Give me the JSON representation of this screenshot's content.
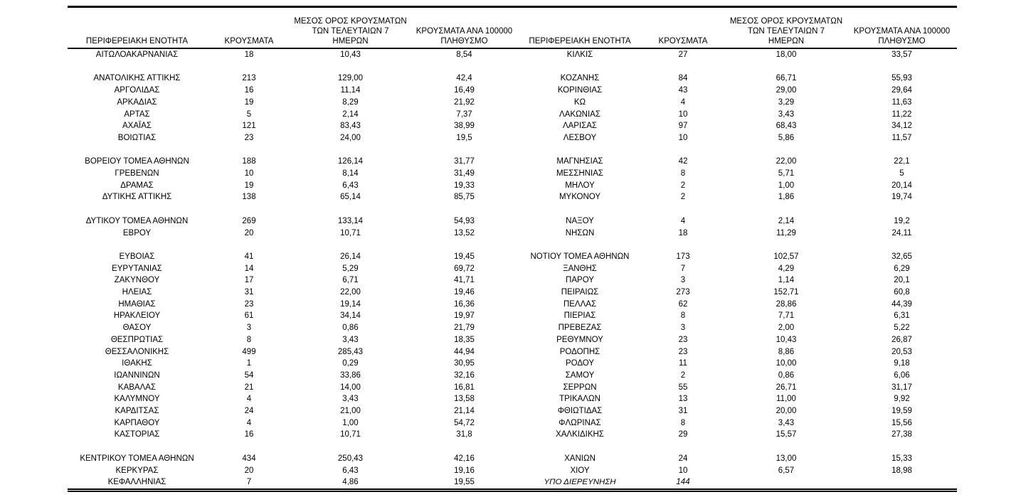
{
  "table": {
    "headers": {
      "region": "ΠΕΡΙΦΕΡΕΙΑΚΗ ΕΝΟΤΗΤΑ",
      "cases": "ΚΡΟΥΣΜΑΤΑ",
      "avg7_lines": [
        "ΜΕΣΟΣ ΟΡΟΣ ΚΡΟΥΣΜΑΤΩΝ",
        "ΤΩΝ ΤΕΛΕΥΤΑΙΩΝ 7",
        "ΗΜΕΡΩΝ"
      ],
      "per100k_lines": [
        "ΚΡΟΥΣΜΑΤΑ ΑΝΑ 100000",
        "ΠΛΗΘΥΣΜΟ"
      ]
    },
    "rows": [
      {
        "left": [
          "ΑΙΤΩΛΟΑΚΑΡΝΑΝΙΑΣ",
          "18",
          "10,43",
          "8,54"
        ],
        "right": [
          "ΚΙΛΚΙΣ",
          "27",
          "18,00",
          "33,57"
        ]
      },
      {
        "spacer": true
      },
      {
        "left": [
          "ΑΝΑΤΟΛΙΚΗΣ ΑΤΤΙΚΗΣ",
          "213",
          "129,00",
          "42,4"
        ],
        "right": [
          "ΚΟΖΑΝΗΣ",
          "84",
          "66,71",
          "55,93"
        ]
      },
      {
        "left": [
          "ΑΡΓΟΛΙΔΑΣ",
          "16",
          "11,14",
          "16,49"
        ],
        "right": [
          "ΚΟΡΙΝΘΙΑΣ",
          "43",
          "29,00",
          "29,64"
        ]
      },
      {
        "left": [
          "ΑΡΚΑΔΙΑΣ",
          "19",
          "8,29",
          "21,92"
        ],
        "right": [
          "ΚΩ",
          "4",
          "3,29",
          "11,63"
        ]
      },
      {
        "left": [
          "ΑΡΤΑΣ",
          "5",
          "2,14",
          "7,37"
        ],
        "right": [
          "ΛΑΚΩΝΙΑΣ",
          "10",
          "3,43",
          "11,22"
        ]
      },
      {
        "left": [
          "ΑΧΑΪΑΣ",
          "121",
          "83,43",
          "38,99"
        ],
        "right": [
          "ΛΑΡΙΣΑΣ",
          "97",
          "68,43",
          "34,12"
        ]
      },
      {
        "left": [
          "ΒΟΙΩΤΙΑΣ",
          "23",
          "24,00",
          "19,5"
        ],
        "right": [
          "ΛΕΣΒΟΥ",
          "10",
          "5,86",
          "11,57"
        ]
      },
      {
        "spacer": true
      },
      {
        "left": [
          "ΒΟΡΕΙΟΥ ΤΟΜΕΑ ΑΘΗΝΩΝ",
          "188",
          "126,14",
          "31,77"
        ],
        "right": [
          "ΜΑΓΝΗΣΙΑΣ",
          "42",
          "22,00",
          "22,1"
        ]
      },
      {
        "left": [
          "ΓΡΕΒΕΝΩΝ",
          "10",
          "8,14",
          "31,49"
        ],
        "right": [
          "ΜΕΣΣΗΝΙΑΣ",
          "8",
          "5,71",
          "5"
        ]
      },
      {
        "left": [
          "ΔΡΑΜΑΣ",
          "19",
          "6,43",
          "19,33"
        ],
        "right": [
          "ΜΗΛΟΥ",
          "2",
          "1,00",
          "20,14"
        ]
      },
      {
        "left": [
          "ΔΥΤΙΚΗΣ ΑΤΤΙΚΗΣ",
          "138",
          "65,14",
          "85,75"
        ],
        "right": [
          "ΜΥΚΟΝΟΥ",
          "2",
          "1,86",
          "19,74"
        ]
      },
      {
        "spacer": true
      },
      {
        "left": [
          "ΔΥΤΙΚΟΥ ΤΟΜΕΑ ΑΘΗΝΩΝ",
          "269",
          "133,14",
          "54,93"
        ],
        "right": [
          "ΝΑΞΟΥ",
          "4",
          "2,14",
          "19,2"
        ]
      },
      {
        "left": [
          "ΕΒΡΟΥ",
          "20",
          "10,71",
          "13,52"
        ],
        "right": [
          "ΝΗΣΩΝ",
          "18",
          "11,29",
          "24,11"
        ]
      },
      {
        "spacer": true
      },
      {
        "left": [
          "ΕΥΒΟΙΑΣ",
          "41",
          "26,14",
          "19,45"
        ],
        "right": [
          "ΝΟΤΙΟΥ ΤΟΜΕΑ ΑΘΗΝΩΝ",
          "173",
          "102,57",
          "32,65"
        ]
      },
      {
        "left": [
          "ΕΥΡΥΤΑΝΙΑΣ",
          "14",
          "5,29",
          "69,72"
        ],
        "right": [
          "ΞΑΝΘΗΣ",
          "7",
          "4,29",
          "6,29"
        ]
      },
      {
        "left": [
          "ΖΑΚΥΝΘΟΥ",
          "17",
          "6,71",
          "41,71"
        ],
        "right": [
          "ΠΑΡΟΥ",
          "3",
          "1,14",
          "20,1"
        ]
      },
      {
        "left": [
          "ΗΛΕΙΑΣ",
          "31",
          "22,00",
          "19,46"
        ],
        "right": [
          "ΠΕΙΡΑΙΩΣ",
          "273",
          "152,71",
          "60,8"
        ]
      },
      {
        "left": [
          "ΗΜΑΘΙΑΣ",
          "23",
          "19,14",
          "16,36"
        ],
        "right": [
          "ΠΕΛΛΑΣ",
          "62",
          "28,86",
          "44,39"
        ]
      },
      {
        "left": [
          "ΗΡΑΚΛΕΙΟΥ",
          "61",
          "34,14",
          "19,97"
        ],
        "right": [
          "ΠΙΕΡΙΑΣ",
          "8",
          "7,71",
          "6,31"
        ]
      },
      {
        "left": [
          "ΘΑΣΟΥ",
          "3",
          "0,86",
          "21,79"
        ],
        "right": [
          "ΠΡΕΒΕΖΑΣ",
          "3",
          "2,00",
          "5,22"
        ]
      },
      {
        "left": [
          "ΘΕΣΠΡΩΤΙΑΣ",
          "8",
          "3,43",
          "18,35"
        ],
        "right": [
          "ΡΕΘΥΜΝΟΥ",
          "23",
          "10,43",
          "26,87"
        ]
      },
      {
        "left": [
          "ΘΕΣΣΑΛΟΝΙΚΗΣ",
          "499",
          "285,43",
          "44,94"
        ],
        "right": [
          "ΡΟΔΟΠΗΣ",
          "23",
          "8,86",
          "20,53"
        ]
      },
      {
        "left": [
          "ΙΘΑΚΗΣ",
          "1",
          "0,29",
          "30,95"
        ],
        "right": [
          "ΡΟΔΟΥ",
          "11",
          "10,00",
          "9,18"
        ]
      },
      {
        "left": [
          "ΙΩΑΝΝΙΝΩΝ",
          "54",
          "33,86",
          "32,16"
        ],
        "right": [
          "ΣΑΜΟΥ",
          "2",
          "0,86",
          "6,06"
        ]
      },
      {
        "left": [
          "ΚΑΒΑΛΑΣ",
          "21",
          "14,00",
          "16,81"
        ],
        "right": [
          "ΣΕΡΡΩΝ",
          "55",
          "26,71",
          "31,17"
        ]
      },
      {
        "left": [
          "ΚΑΛΥΜΝΟΥ",
          "4",
          "3,43",
          "13,58"
        ],
        "right": [
          "ΤΡΙΚΑΛΩΝ",
          "13",
          "11,00",
          "9,92"
        ]
      },
      {
        "left": [
          "ΚΑΡΔΙΤΣΑΣ",
          "24",
          "21,00",
          "21,14"
        ],
        "right": [
          "ΦΘΙΩΤΙΔΑΣ",
          "31",
          "20,00",
          "19,59"
        ]
      },
      {
        "left": [
          "ΚΑΡΠΑΘΟΥ",
          "4",
          "1,00",
          "54,72"
        ],
        "right": [
          "ΦΛΩΡΙΝΑΣ",
          "8",
          "3,43",
          "15,56"
        ]
      },
      {
        "left": [
          "ΚΑΣΤΟΡΙΑΣ",
          "16",
          "10,71",
          "31,8"
        ],
        "right": [
          "ΧΑΛΚΙΔΙΚΗΣ",
          "29",
          "15,57",
          "27,38"
        ]
      },
      {
        "spacer": true
      },
      {
        "left": [
          "ΚΕΝΤΡΙΚΟΥ ΤΟΜΕΑ ΑΘΗΝΩΝ",
          "434",
          "250,43",
          "42,16"
        ],
        "right": [
          "ΧΑΝΙΩΝ",
          "24",
          "13,00",
          "15,33"
        ]
      },
      {
        "left": [
          "ΚΕΡΚΥΡΑΣ",
          "20",
          "6,43",
          "19,16"
        ],
        "right": [
          "ΧΙΟΥ",
          "10",
          "6,57",
          "18,98"
        ]
      },
      {
        "left": [
          "ΚΕΦΑΛΛΗΝΙΑΣ",
          "7",
          "4,86",
          "19,55"
        ],
        "right": [
          "ΥΠΟ ΔΙΕΡΕΥΝΗΣΗ",
          "144",
          "",
          ""
        ],
        "right_italic": true
      }
    ]
  }
}
